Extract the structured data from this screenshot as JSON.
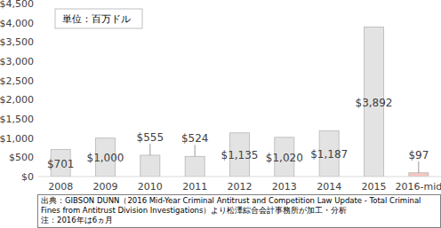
{
  "chart_data": {
    "type": "bar",
    "categories": [
      "2008",
      "2009",
      "2010",
      "2011",
      "2012",
      "2013",
      "2014",
      "2015",
      "2016-mid"
    ],
    "values": [
      701,
      1000,
      555,
      524,
      1135,
      1020,
      1187,
      3892,
      97
    ],
    "value_labels": [
      "$701",
      "$1,000",
      "$555",
      "$524",
      "$1,135",
      "$1,020",
      "$1,187",
      "$3,892",
      "$97"
    ],
    "colors": [
      "#e3e3e3",
      "#e3e3e3",
      "#e3e3e3",
      "#e3e3e3",
      "#e3e3e3",
      "#e3e3e3",
      "#e3e3e3",
      "#e3e3e3",
      "#f7c6c0"
    ],
    "ylim": [
      0,
      4500
    ],
    "yticks": [
      {
        "value": 0,
        "label": "$0"
      },
      {
        "value": 500,
        "label": "$500"
      },
      {
        "value": 1000,
        "label": "$1,000"
      },
      {
        "value": 1500,
        "label": "$1,500"
      },
      {
        "value": 2000,
        "label": "$2,000"
      },
      {
        "value": 2500,
        "label": "$2,500"
      },
      {
        "value": 3000,
        "label": "$3,000"
      },
      {
        "value": 3500,
        "label": "$3,500"
      },
      {
        "value": 4000,
        "label": "$4,000"
      },
      {
        "value": 4500,
        "label": "$4,500"
      }
    ],
    "grid": false,
    "data_labels": true,
    "annotations": [
      "単位：百万ドル",
      "出典：GIBSON DUNN（2016 Mid-Year Criminal Antitrust and Competition Law Update - Total Criminal Fines from Antitrust Division Investigations）より松澤綜合会計事務所が加工・分析",
      "注：2016年は6ヵ月"
    ]
  }
}
